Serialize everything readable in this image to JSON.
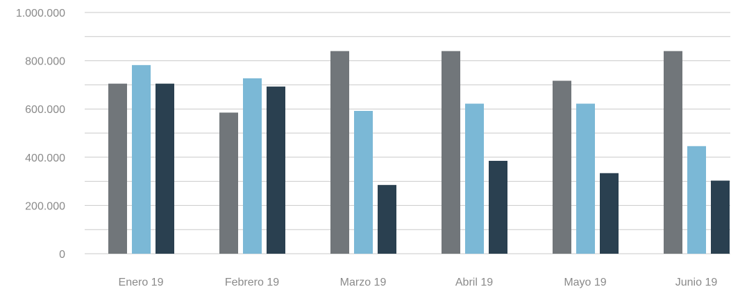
{
  "chart_data": {
    "type": "bar",
    "categories": [
      "Enero 19",
      "Febrero 19",
      "Marzo 19",
      "Abril 19",
      "Mayo 19",
      "Junio 19"
    ],
    "series": [
      {
        "values": [
          705000,
          585000,
          840000,
          840000,
          717000,
          840000
        ],
        "color": "#71767a"
      },
      {
        "values": [
          782000,
          727000,
          592000,
          622000,
          622000,
          446000
        ],
        "color": "#7bb8d6"
      },
      {
        "values": [
          705000,
          693000,
          285000,
          385000,
          334000,
          303000
        ],
        "color": "#2a4050"
      }
    ],
    "yticks": [
      0,
      200000,
      400000,
      600000,
      800000,
      1000000
    ],
    "ytick_labels": [
      "0",
      "200.000",
      "400.000",
      "600.000",
      "800.000",
      "1.000.000"
    ],
    "ylim": [
      0,
      1000000
    ],
    "grid": true,
    "legend": "none"
  }
}
